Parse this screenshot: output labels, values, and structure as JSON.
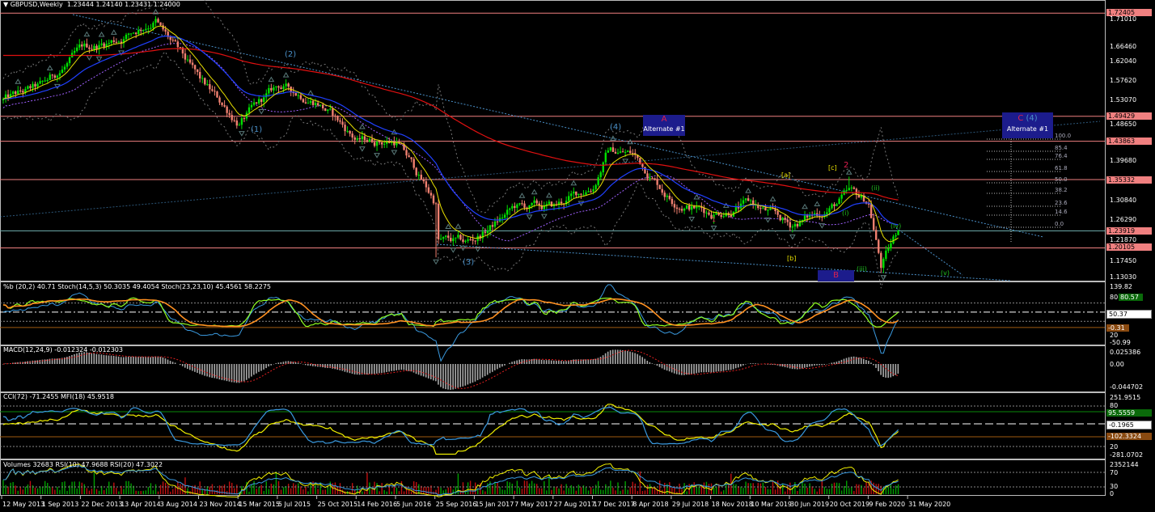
{
  "header": {
    "symbol": "GBPUSD,Weekly",
    "ohlc": "1.23444 1.24140 1.23431 1.24000"
  },
  "price_axis": {
    "ticks": [
      "1.71010",
      "1.66460",
      "1.62040",
      "1.57620",
      "1.53070",
      "1.48650",
      "1.39680",
      "1.30840",
      "1.26290",
      "1.21870",
      "1.17450",
      "1.13030"
    ],
    "levels": [
      "1.72405",
      "1.49429",
      "1.43863",
      "1.35332",
      "1.23919",
      "1.20105"
    ]
  },
  "panels": {
    "stoch": {
      "title": "%b (20,2) 40.71  Stoch(14,5,3) 50.3035 49.4054  Stoch(23,23,10) 45.4561 58.2275",
      "ticks": [
        "139.82",
        "20",
        "-50.99"
      ],
      "box_green": "80.57",
      "box_white": "50.37",
      "box_orange": "-0.31",
      "level80": "80"
    },
    "macd": {
      "title": "MACD(12,24,9) -0.012324 -0.012303",
      "ticks": [
        "0.025386",
        "0.00",
        "-0.044702"
      ]
    },
    "cci": {
      "title": "CCI(72) -71.2455  MFI(18) 45.9518",
      "ticks": [
        "251.9515",
        "80",
        "20",
        "-281.0702"
      ],
      "box_green": "95.5559",
      "box_white": "-0.1965",
      "box_orange": "-102.3324"
    },
    "volume": {
      "title": "Volumes 32683  RSI(10) 47.9688  RSI(20) 47.3022",
      "ticks": [
        "2352144",
        "70",
        "30",
        "0"
      ]
    }
  },
  "time_axis": [
    "12 May 2013",
    "1 Sep 2013",
    "22 Dec 2013",
    "13 Apr 2014",
    "3 Aug 2014",
    "23 Nov 2014",
    "15 Mar 2015",
    "5 Jul 2015",
    "25 Oct 2015",
    "14 Feb 2016",
    "5 Jun 2016",
    "25 Sep 2016",
    "15 Jan 2017",
    "7 May 2017",
    "27 Aug 2017",
    "17 Dec 2017",
    "8 Apr 2018",
    "29 Jul 2018",
    "18 Nov 2018",
    "10 Mar 2019",
    "30 Jun 2019",
    "20 Oct 2019",
    "9 Feb 2020",
    "31 May 2020"
  ],
  "annotations": {
    "w1": "(1)",
    "w2": "(2)",
    "w3": "(3)",
    "w4": "(4)",
    "a_label": "A",
    "a_sub": "Alternate #1",
    "c_label": "C",
    "c_wave": "(4)",
    "c_sub": "Alternate #1",
    "b_label": "B",
    "sa": "[a]",
    "sb": "[b]",
    "sc": "[c]",
    "red2": "2",
    "red1": "1",
    "mi": "(i)",
    "mii": "(ii)",
    "miii": "(iii)",
    "miv": "(iv)",
    "mv": "(v)"
  },
  "fib_levels": [
    "100.0",
    "85.4",
    "76.4",
    "61.8",
    "50.0",
    "38.2",
    "23.6",
    "14.6",
    "0.0"
  ],
  "colors": {
    "bull": "#00e000",
    "bear": "#f08070",
    "level": "#f08080",
    "ma200": "#e01010",
    "ma_blue": "#2040ff",
    "ma_yellow": "#e8e000",
    "trend": "#4a90c8",
    "stoch_fast": "#90ff20",
    "stoch_slow": "#ff9020",
    "cci": "#f0f000",
    "mfi": "#3a9ae0"
  },
  "chart_data": {
    "type": "candlestick",
    "title": "GBPUSD,Weekly",
    "x": [
      "12 May 2013",
      "1 Sep 2013",
      "22 Dec 2013",
      "13 Apr 2014",
      "3 Aug 2014",
      "23 Nov 2014",
      "15 Mar 2015",
      "5 Jul 2015",
      "25 Oct 2015",
      "14 Feb 2016",
      "5 Jun 2016",
      "25 Sep 2016",
      "15 Jan 2017",
      "7 May 2017",
      "27 Aug 2017",
      "17 Dec 2017",
      "8 Apr 2018",
      "29 Jul 2018",
      "18 Nov 2018",
      "10 Mar 2019",
      "30 Jun 2019",
      "20 Oct 2019",
      "9 Feb 2020",
      "31 May 2020"
    ],
    "close": [
      1.53,
      1.56,
      1.64,
      1.67,
      1.69,
      1.57,
      1.48,
      1.56,
      1.53,
      1.44,
      1.44,
      1.3,
      1.22,
      1.29,
      1.29,
      1.34,
      1.41,
      1.31,
      1.28,
      1.3,
      1.25,
      1.29,
      1.3,
      1.24
    ],
    "last": {
      "open": 1.23444,
      "high": 1.2414,
      "low": 1.23431,
      "close": 1.24
    },
    "ylim": [
      1.1303,
      1.7241
    ]
  }
}
